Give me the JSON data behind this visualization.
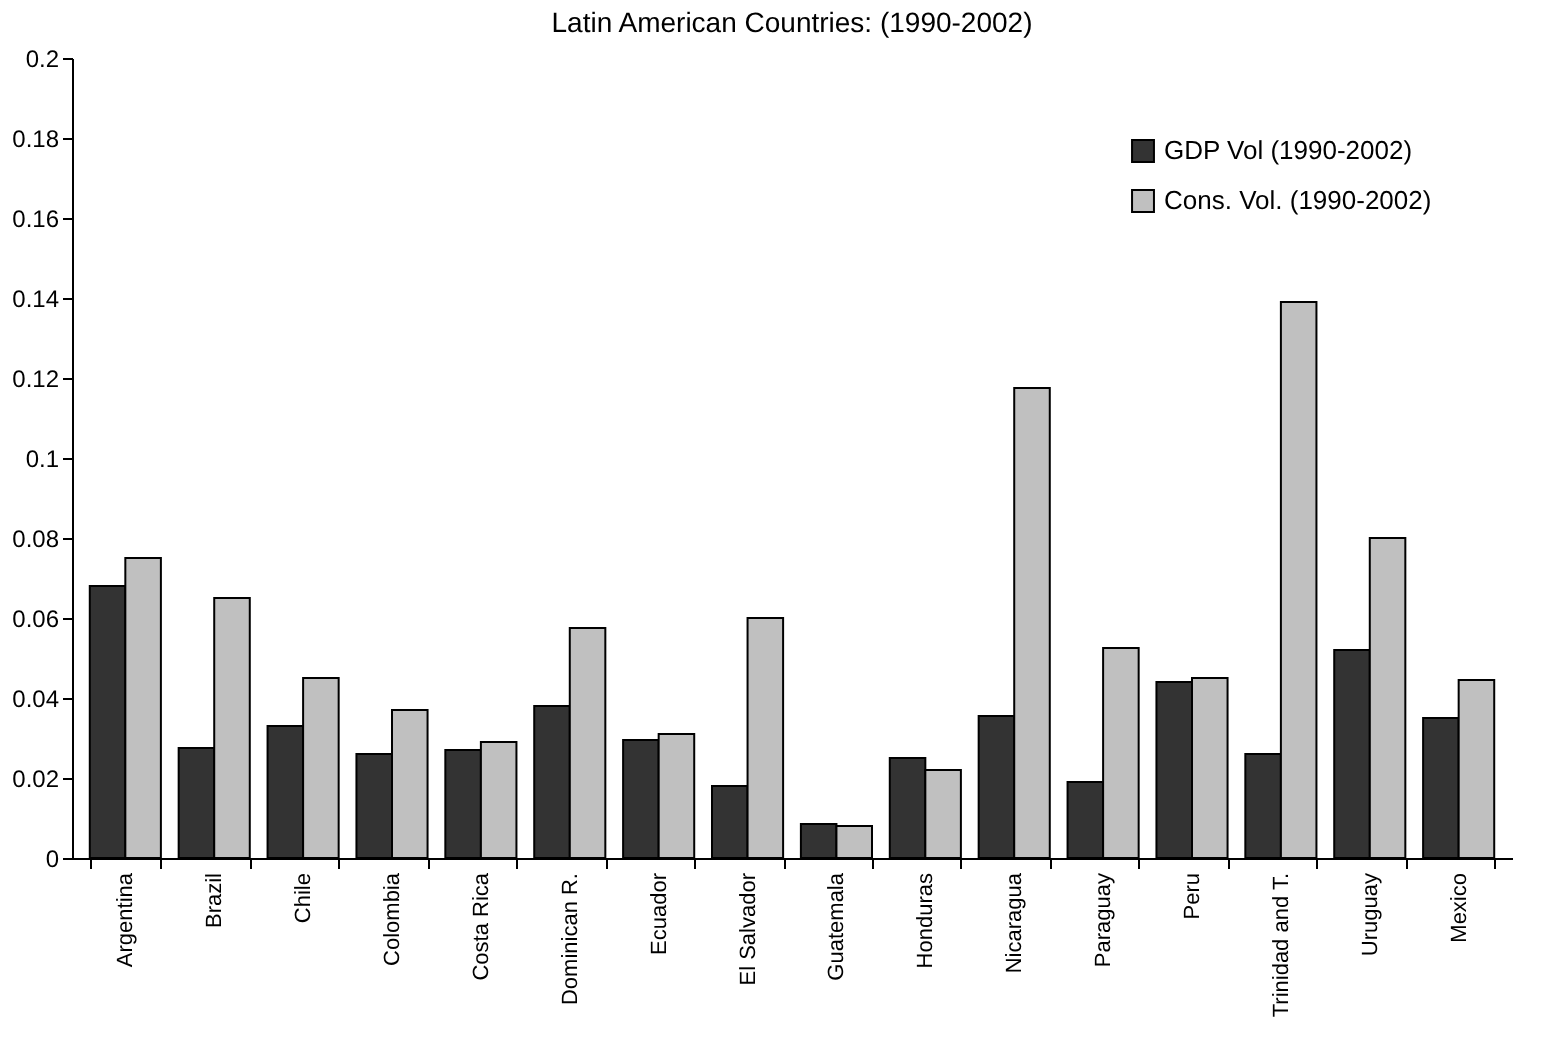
{
  "chart_data": {
    "type": "bar",
    "title": "Latin American Countries: (1990-2002)",
    "categories": [
      "Argentina",
      "Brazil",
      "Chile",
      "Colombia",
      "Costa Rica",
      "Dominican R.",
      "Ecuador",
      "El Salvador",
      "Guatemala",
      "Honduras",
      "Nicaragua",
      "Paraguay",
      "Peru",
      "Trinidad and T.",
      "Uruguay",
      "Mexico"
    ],
    "series": [
      {
        "name": "GDP Vol (1990-2002)",
        "color": "#333333",
        "values": [
          0.068,
          0.0275,
          0.033,
          0.026,
          0.027,
          0.038,
          0.0295,
          0.018,
          0.0085,
          0.025,
          0.0355,
          0.019,
          0.044,
          0.026,
          0.052,
          0.035
        ]
      },
      {
        "name": "Cons. Vol. (1990-2002)",
        "color": "#c0c0c0",
        "values": [
          0.075,
          0.065,
          0.045,
          0.037,
          0.029,
          0.0575,
          0.031,
          0.06,
          0.008,
          0.022,
          0.1175,
          0.0525,
          0.045,
          0.139,
          0.08,
          0.0445
        ]
      }
    ],
    "ylim": [
      0,
      0.2
    ],
    "yticks": [
      0,
      0.02,
      0.04,
      0.06,
      0.08,
      0.1,
      0.12,
      0.14,
      0.16,
      0.18,
      0.2
    ],
    "grid": false,
    "legend": "top right"
  }
}
